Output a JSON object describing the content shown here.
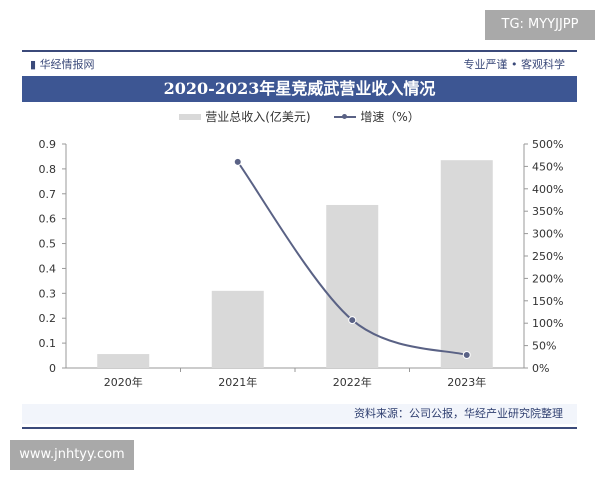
{
  "watermark_top": "TG: MYYJJPP",
  "watermark_bottom": "www.jnhtyy.com",
  "brand": "华经情报网",
  "slogan": "专业严谨 • 客观科学",
  "source": "资料来源：公司公报，华经产业研究院整理",
  "colors": {
    "bar": "#d9d9d9",
    "line": "#5a6285",
    "title_bg": "#3d5693"
  },
  "chart_data": {
    "type": "bar+line",
    "title": "2020-2023年星竞威武营业收入情况",
    "categories": [
      "2020年",
      "2021年",
      "2022年",
      "2023年"
    ],
    "series": [
      {
        "name": "营业总收入(亿美元)",
        "type": "bar",
        "axis": "left",
        "values": [
          0.056,
          0.31,
          0.655,
          0.835
        ]
      },
      {
        "name": "增速（%）",
        "type": "line",
        "axis": "right",
        "values": [
          null,
          460,
          107,
          29
        ]
      }
    ],
    "left_axis": {
      "range": [
        0,
        0.9
      ],
      "ticks": [
        "0",
        "0.1",
        "0.2",
        "0.3",
        "0.4",
        "0.5",
        "0.6",
        "0.7",
        "0.8",
        "0.9"
      ]
    },
    "right_axis": {
      "range": [
        0,
        500
      ],
      "ticks": [
        "0%",
        "50%",
        "100%",
        "150%",
        "200%",
        "250%",
        "300%",
        "350%",
        "400%",
        "450%",
        "500%"
      ]
    },
    "grid": false,
    "legend": "top"
  }
}
